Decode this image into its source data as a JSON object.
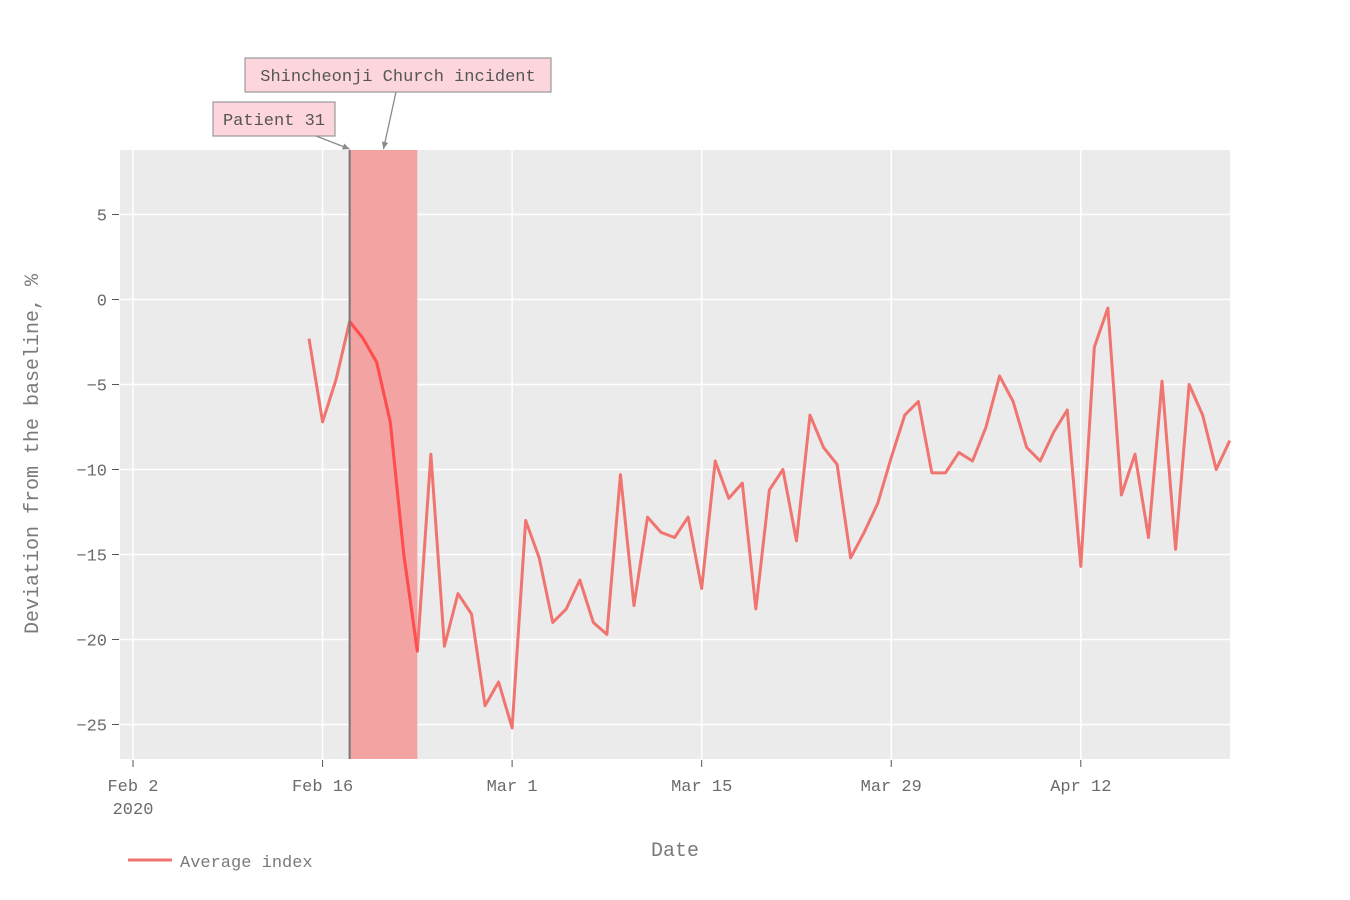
{
  "chart_data": {
    "type": "line",
    "xlabel": "Date",
    "ylabel": "Deviation from the baseline, %",
    "x_range": [
      "2020-02-01",
      "2020-04-23"
    ],
    "ylim": [
      -27,
      9
    ],
    "grid": true,
    "x_ticks": [
      {
        "date": "2020-02-02",
        "label": "Feb 2",
        "sublabel": "2020"
      },
      {
        "date": "2020-02-16",
        "label": "Feb 16",
        "sublabel": ""
      },
      {
        "date": "2020-03-01",
        "label": "Mar 1",
        "sublabel": ""
      },
      {
        "date": "2020-03-15",
        "label": "Mar 15",
        "sublabel": ""
      },
      {
        "date": "2020-03-29",
        "label": "Mar 29",
        "sublabel": ""
      },
      {
        "date": "2020-04-12",
        "label": "Apr 12",
        "sublabel": ""
      }
    ],
    "y_ticks": [
      5,
      0,
      -5,
      -10,
      -15,
      -20,
      -25
    ],
    "legend": {
      "placement": "bottom-left",
      "entries": [
        "Average index"
      ]
    },
    "series": [
      {
        "name": "Average index",
        "color": "#f07470",
        "points": [
          [
            "2020-02-15",
            -2.3
          ],
          [
            "2020-02-16",
            -7.2
          ],
          [
            "2020-02-17",
            -4.7
          ],
          [
            "2020-02-18",
            -1.3
          ],
          [
            "2020-02-19",
            -2.3
          ],
          [
            "2020-02-20",
            -3.7
          ],
          [
            "2020-02-21",
            -7.2
          ],
          [
            "2020-02-22",
            -15.0
          ],
          [
            "2020-02-23",
            -20.7
          ],
          [
            "2020-02-24",
            -9.1
          ],
          [
            "2020-02-25",
            -20.4
          ],
          [
            "2020-02-26",
            -17.3
          ],
          [
            "2020-02-27",
            -18.5
          ],
          [
            "2020-02-28",
            -23.9
          ],
          [
            "2020-02-29",
            -22.5
          ],
          [
            "2020-03-01",
            -25.2
          ],
          [
            "2020-03-02",
            -13.0
          ],
          [
            "2020-03-03",
            -15.2
          ],
          [
            "2020-03-04",
            -19.0
          ],
          [
            "2020-03-05",
            -18.2
          ],
          [
            "2020-03-06",
            -16.5
          ],
          [
            "2020-03-07",
            -19.0
          ],
          [
            "2020-03-08",
            -19.7
          ],
          [
            "2020-03-09",
            -10.3
          ],
          [
            "2020-03-10",
            -18.0
          ],
          [
            "2020-03-11",
            -12.8
          ],
          [
            "2020-03-12",
            -13.7
          ],
          [
            "2020-03-13",
            -14.0
          ],
          [
            "2020-03-14",
            -12.8
          ],
          [
            "2020-03-15",
            -17.0
          ],
          [
            "2020-03-16",
            -9.5
          ],
          [
            "2020-03-17",
            -11.7
          ],
          [
            "2020-03-18",
            -10.8
          ],
          [
            "2020-03-19",
            -18.2
          ],
          [
            "2020-03-20",
            -11.2
          ],
          [
            "2020-03-21",
            -10.0
          ],
          [
            "2020-03-22",
            -14.2
          ],
          [
            "2020-03-23",
            -6.8
          ],
          [
            "2020-03-24",
            -8.7
          ],
          [
            "2020-03-25",
            -9.7
          ],
          [
            "2020-03-26",
            -15.2
          ],
          [
            "2020-03-27",
            -13.7
          ],
          [
            "2020-03-28",
            -12.0
          ],
          [
            "2020-03-29",
            -9.3
          ],
          [
            "2020-03-30",
            -6.8
          ],
          [
            "2020-03-31",
            -6.0
          ],
          [
            "2020-04-01",
            -10.2
          ],
          [
            "2020-04-02",
            -10.2
          ],
          [
            "2020-04-03",
            -9.0
          ],
          [
            "2020-04-04",
            -9.5
          ],
          [
            "2020-04-05",
            -7.5
          ],
          [
            "2020-04-06",
            -4.5
          ],
          [
            "2020-04-07",
            -6.0
          ],
          [
            "2020-04-08",
            -8.7
          ],
          [
            "2020-04-09",
            -9.5
          ],
          [
            "2020-04-10",
            -7.8
          ],
          [
            "2020-04-11",
            -6.5
          ],
          [
            "2020-04-12",
            -15.7
          ],
          [
            "2020-04-13",
            -2.8
          ],
          [
            "2020-04-14",
            -0.5
          ],
          [
            "2020-04-15",
            -11.5
          ],
          [
            "2020-04-16",
            -9.1
          ],
          [
            "2020-04-17",
            -14.0
          ],
          [
            "2020-04-18",
            -4.8
          ],
          [
            "2020-04-19",
            -14.7
          ],
          [
            "2020-04-20",
            -5.0
          ],
          [
            "2020-04-21",
            -6.8
          ],
          [
            "2020-04-22",
            -10.0
          ],
          [
            "2020-04-23",
            -8.3
          ]
        ]
      }
    ],
    "highlight": {
      "start": "2020-02-18",
      "end": "2020-02-23",
      "fill": "#f4a3a3",
      "line_color": "#ff4d4d"
    },
    "vline": {
      "date": "2020-02-18",
      "color": "#777777"
    },
    "annotations": [
      {
        "text": "Patient 31",
        "target_date": "2020-02-18"
      },
      {
        "text": "Shincheonji Church incident",
        "target_date": "2020-02-20.5"
      }
    ],
    "colors": {
      "plot_bg": "#ebebeb",
      "grid": "#ffffff",
      "annotation_fill": "#fdd5dc",
      "annotation_border": "#999999"
    }
  }
}
